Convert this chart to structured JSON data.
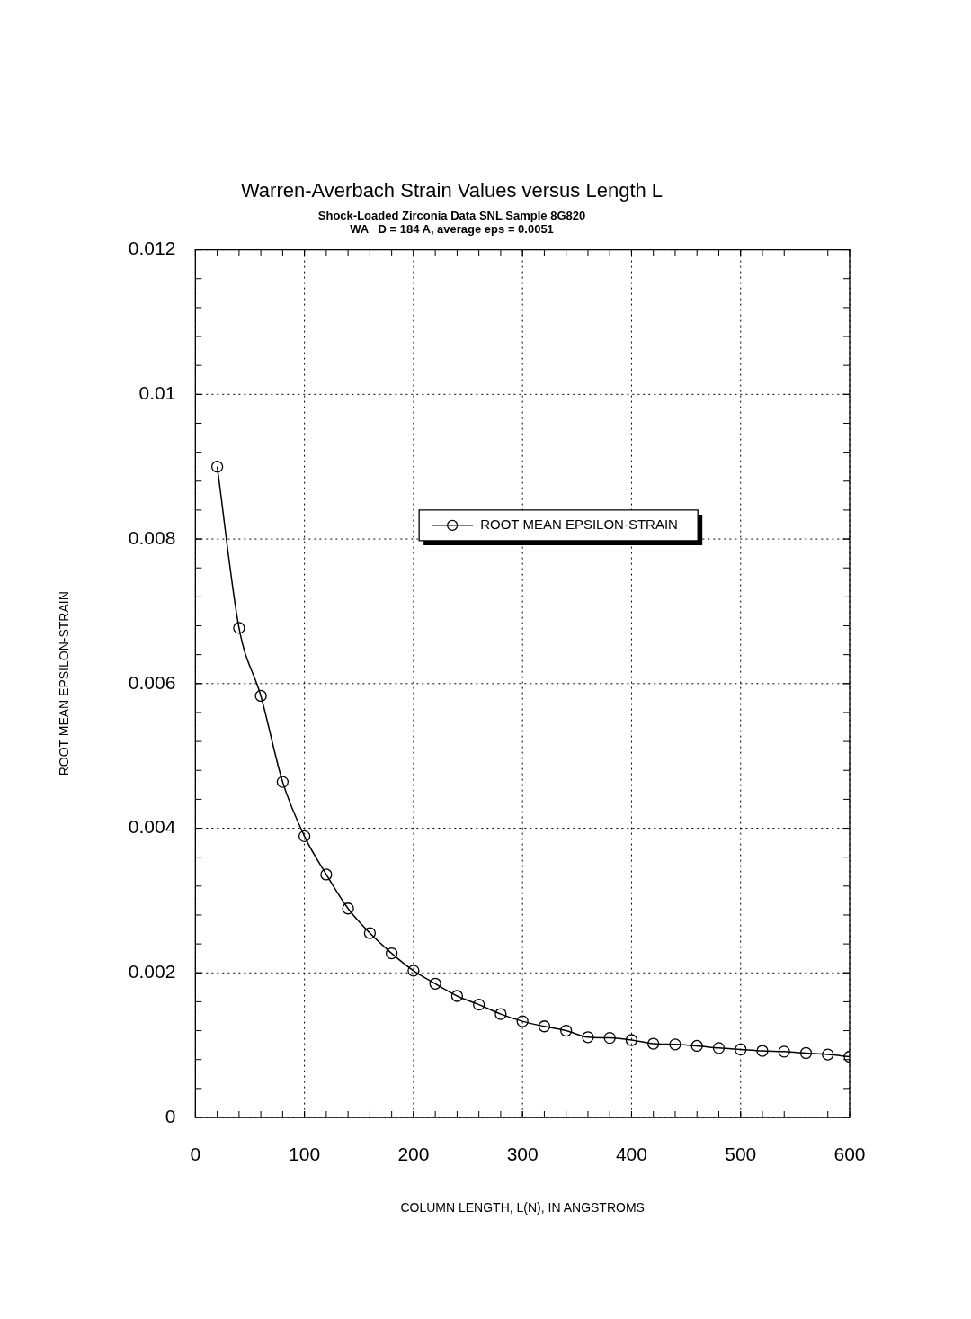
{
  "chart_data": {
    "type": "line",
    "title": "Warren-Averbach Strain Values versus Length L",
    "subtitle": "Shock-Loaded Zirconia Data SNL Sample 8G820\nWA   D = 184 A, average eps = 0.0051",
    "xlabel": "COLUMN LENGTH, L(N), IN ANGSTROMS",
    "ylabel": "ROOT MEAN EPSILON-STRAIN",
    "x": [
      20,
      40,
      60,
      80,
      100,
      120,
      140,
      160,
      180,
      200,
      220,
      240,
      260,
      280,
      300,
      320,
      340,
      360,
      380,
      400,
      420,
      440,
      460,
      480,
      500,
      520,
      540,
      560,
      580,
      600
    ],
    "series": [
      {
        "name": "ROOT MEAN EPSILON-STRAIN",
        "color": "#000000",
        "values": [
          0.009,
          0.00677,
          0.00583,
          0.00464,
          0.00389,
          0.00336,
          0.00289,
          0.00255,
          0.00227,
          0.00203,
          0.00185,
          0.00168,
          0.00156,
          0.00143,
          0.00133,
          0.00126,
          0.0012,
          0.00111,
          0.0011,
          0.00107,
          0.00102,
          0.00101,
          0.00099,
          0.00096,
          0.00094,
          0.00092,
          0.00091,
          0.00089,
          0.00087,
          0.00084
        ]
      }
    ],
    "xlim": [
      0,
      600
    ],
    "xticks": [
      0,
      100,
      200,
      300,
      400,
      500,
      600
    ],
    "ylim": [
      0,
      0.012
    ],
    "yticks": [
      0,
      0.002,
      0.004,
      0.006,
      0.008,
      0.01,
      0.012
    ],
    "grid": true,
    "legend": "center",
    "marker": "circle",
    "line_style": "solid"
  }
}
